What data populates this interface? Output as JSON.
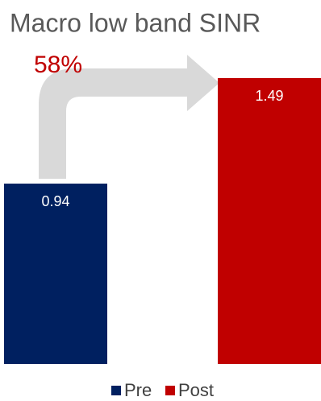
{
  "chart_data": {
    "type": "bar",
    "title": "Macro low band SINR",
    "categories": [
      null
    ],
    "series": [
      {
        "name": "Pre",
        "color": "#002060",
        "values": [
          0.94
        ]
      },
      {
        "name": "Post",
        "color": "#c00000",
        "values": [
          1.49
        ]
      }
    ],
    "annotation": "58%",
    "annotation_color": "#c00000"
  }
}
